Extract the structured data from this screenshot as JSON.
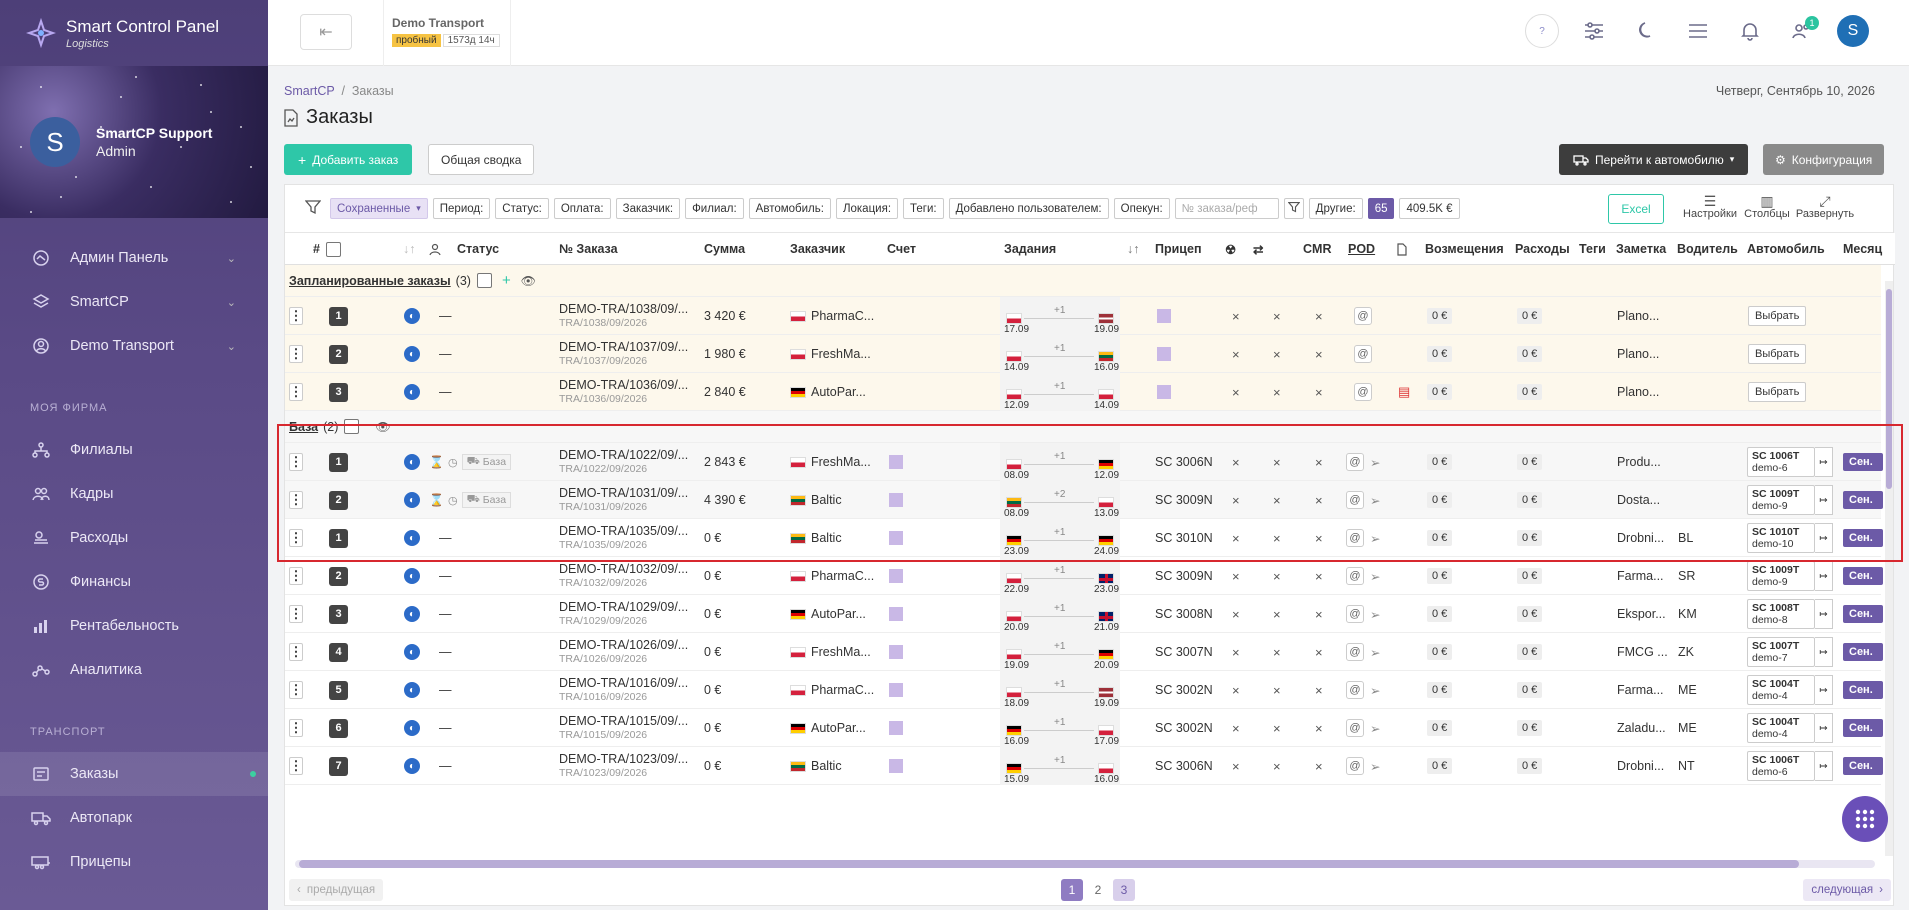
{
  "brand": {
    "title": "Smart Control Panel",
    "subtitle": "Logistics"
  },
  "user": {
    "initial": "S",
    "name": "SmartCP Support",
    "role": "Admin"
  },
  "nav": {
    "top": [
      {
        "label": "Админ Панель",
        "icon": "grid-icon"
      },
      {
        "label": "SmartCP",
        "icon": "layers-icon"
      },
      {
        "label": "Demo Transport",
        "icon": "user-circle-icon"
      }
    ],
    "section_company": "МОЯ ФИРМА",
    "company": [
      {
        "label": "Филиалы",
        "icon": "network-icon"
      },
      {
        "label": "Кадры",
        "icon": "people-icon"
      },
      {
        "label": "Расходы",
        "icon": "cash-icon"
      },
      {
        "label": "Финансы",
        "icon": "coin-icon"
      },
      {
        "label": "Рентабельность",
        "icon": "bar-chart-icon"
      },
      {
        "label": "Аналитика",
        "icon": "analytics-icon"
      }
    ],
    "section_transport": "ТРАНСПОРТ",
    "transport": [
      {
        "label": "Заказы",
        "icon": "orders-icon"
      },
      {
        "label": "Автопарк",
        "icon": "truck-icon"
      },
      {
        "label": "Прицепы",
        "icon": "trailer-icon"
      }
    ]
  },
  "topbar": {
    "company_name": "Demo Transport",
    "trial_badge": "пробный",
    "time_badge": "1573д 14ч",
    "help_label": "?",
    "notif_count": "1",
    "avatar_initial": "S"
  },
  "page": {
    "breadcrumb_root": "SmartCP",
    "breadcrumb_sep": "/",
    "breadcrumb_current": "Заказы",
    "date": "Четверг, Сентябрь 10, 2026",
    "title": "Заказы",
    "add_button": "Добавить заказ",
    "summary_button": "Общая сводка",
    "go_vehicle_button": "Перейти к автомобилю",
    "config_button": "Конфигурация"
  },
  "filters": {
    "saved": "Сохраненные",
    "chips": [
      "Период:",
      "Статус:",
      "Оплата:",
      "Заказчик:",
      "Филиал:",
      "Автомобиль:",
      "Локация:",
      "Теги:",
      "Добавлено пользователем:",
      "Опекун:"
    ],
    "search_placeholder": "№ заказа/реф",
    "other": "Другие:",
    "count": "65",
    "total": "409.5K €",
    "excel": "Excel",
    "settings": "Настройки",
    "columns": "Столбцы",
    "expand": "Развернуть"
  },
  "columns": {
    "hash": "#",
    "status": "Статус",
    "order_no": "№ Заказа",
    "sum": "Сумма",
    "customer": "Заказчик",
    "invoice": "Счет",
    "tasks": "Задания",
    "trailer": "Прицеп",
    "cmr": "CMR",
    "pod": "POD",
    "refunds": "Возмещения",
    "expenses": "Расходы",
    "tags": "Теги",
    "note": "Заметка",
    "driver": "Водитель",
    "vehicle": "Автомобиль",
    "month": "Месяц"
  },
  "groups": {
    "planned": {
      "title": "Запланированные заказы",
      "count": "(3)",
      "add": "+"
    },
    "base": {
      "title": "База",
      "count": "(2)"
    }
  },
  "planned_rows": [
    {
      "n": "1",
      "order": "DEMO-TRA/1038/09/...",
      "ref": "TRA/1038/09/2026",
      "sum": "3 420 €",
      "flag": "pl",
      "customer": "PharmaC...",
      "f1": "pl",
      "f2": "lv",
      "plus": "+1",
      "d1": "17.09",
      "d2": "19.09",
      "refund": "0 €",
      "expense": "0 €",
      "note": "Plano...",
      "choose": "Выбрать",
      "pdf": false
    },
    {
      "n": "2",
      "order": "DEMO-TRA/1037/09/...",
      "ref": "TRA/1037/09/2026",
      "sum": "1 980 €",
      "flag": "pl",
      "customer": "FreshMa...",
      "f1": "pl",
      "f2": "lt",
      "plus": "+1",
      "d1": "14.09",
      "d2": "16.09",
      "refund": "0 €",
      "expense": "0 €",
      "note": "Plano...",
      "choose": "Выбрать",
      "pdf": false
    },
    {
      "n": "3",
      "order": "DEMO-TRA/1036/09/...",
      "ref": "TRA/1036/09/2026",
      "sum": "2 840 €",
      "flag": "de",
      "customer": "AutoPar...",
      "f1": "pl",
      "f2": "pl",
      "plus": "+1",
      "d1": "12.09",
      "d2": "14.09",
      "refund": "0 €",
      "expense": "0 €",
      "note": "Plano...",
      "choose": "Выбрать",
      "pdf": true
    }
  ],
  "base_rows": [
    {
      "n": "1",
      "order": "DEMO-TRA/1022/09/...",
      "ref": "TRA/1022/09/2026",
      "sum": "2 843 €",
      "flag": "pl",
      "customer": "FreshMa...",
      "f1": "pl",
      "f2": "de",
      "plus": "+1",
      "d1": "08.09",
      "d2": "12.09",
      "trailer": "SC 3006N",
      "refund": "0 €",
      "expense": "0 €",
      "note": "Produ...",
      "car1": "SC 1006T",
      "car2": "demo-6",
      "status": "База",
      "sen": "Сен."
    },
    {
      "n": "2",
      "order": "DEMO-TRA/1031/09/...",
      "ref": "TRA/1031/09/2026",
      "sum": "4 390 €",
      "flag": "lt",
      "customer": "Baltic",
      "f1": "lt",
      "f2": "pl",
      "plus": "+2",
      "d1": "08.09",
      "d2": "13.09",
      "trailer": "SC 3009N",
      "refund": "0 €",
      "expense": "0 €",
      "note": "Dosta...",
      "car1": "SC 1009T",
      "car2": "demo-9",
      "status": "База",
      "sen": "Сен."
    }
  ],
  "rows": [
    {
      "n": "1",
      "order": "DEMO-TRA/1035/09/...",
      "ref": "TRA/1035/09/2026",
      "sum": "0 €",
      "flag": "lt",
      "customer": "Baltic",
      "f1": "de",
      "f2": "de",
      "plus": "+1",
      "d1": "23.09",
      "d2": "24.09",
      "trailer": "SC 3010N",
      "refund": "0 €",
      "expense": "0 €",
      "note": "Drobni...",
      "driver": "BL",
      "car1": "SC 1010T",
      "car2": "demo-10",
      "sen": "Сен."
    },
    {
      "n": "2",
      "order": "DEMO-TRA/1032/09/...",
      "ref": "TRA/1032/09/2026",
      "sum": "0 €",
      "flag": "pl",
      "customer": "PharmaC...",
      "f1": "pl",
      "f2": "gb",
      "plus": "+1",
      "d1": "22.09",
      "d2": "23.09",
      "trailer": "SC 3009N",
      "refund": "0 €",
      "expense": "0 €",
      "note": "Farma...",
      "driver": "SR",
      "car1": "SC 1009T",
      "car2": "demo-9",
      "sen": "Сен."
    },
    {
      "n": "3",
      "order": "DEMO-TRA/1029/09/...",
      "ref": "TRA/1029/09/2026",
      "sum": "0 €",
      "flag": "de",
      "customer": "AutoPar...",
      "f1": "pl",
      "f2": "gb",
      "plus": "+1",
      "d1": "20.09",
      "d2": "21.09",
      "trailer": "SC 3008N",
      "refund": "0 €",
      "expense": "0 €",
      "note": "Ekspor...",
      "driver": "KM",
      "car1": "SC 1008T",
      "car2": "demo-8",
      "sen": "Сен."
    },
    {
      "n": "4",
      "order": "DEMO-TRA/1026/09/...",
      "ref": "TRA/1026/09/2026",
      "sum": "0 €",
      "flag": "pl",
      "customer": "FreshMa...",
      "f1": "pl",
      "f2": "de",
      "plus": "+1",
      "d1": "19.09",
      "d2": "20.09",
      "trailer": "SC 3007N",
      "refund": "0 €",
      "expense": "0 €",
      "note": "FMCG ...",
      "driver": "ZK",
      "car1": "SC 1007T",
      "car2": "demo-7",
      "sen": "Сен."
    },
    {
      "n": "5",
      "order": "DEMO-TRA/1016/09/...",
      "ref": "TRA/1016/09/2026",
      "sum": "0 €",
      "flag": "pl",
      "customer": "PharmaC...",
      "f1": "pl",
      "f2": "lv",
      "plus": "+1",
      "d1": "18.09",
      "d2": "19.09",
      "trailer": "SC 3002N",
      "refund": "0 €",
      "expense": "0 €",
      "note": "Farma...",
      "driver": "ME",
      "car1": "SC 1004T",
      "car2": "demo-4",
      "sen": "Сен."
    },
    {
      "n": "6",
      "order": "DEMO-TRA/1015/09/...",
      "ref": "TRA/1015/09/2026",
      "sum": "0 €",
      "flag": "de",
      "customer": "AutoPar...",
      "f1": "de",
      "f2": "pl",
      "plus": "+1",
      "d1": "16.09",
      "d2": "17.09",
      "trailer": "SC 3002N",
      "refund": "0 €",
      "expense": "0 €",
      "note": "Zaladu...",
      "driver": "ME",
      "car1": "SC 1004T",
      "car2": "demo-4",
      "sen": "Сен."
    },
    {
      "n": "7",
      "order": "DEMO-TRA/1023/09/...",
      "ref": "TRA/1023/09/2026",
      "sum": "0 €",
      "flag": "lt",
      "customer": "Baltic",
      "f1": "de",
      "f2": "pl",
      "plus": "+1",
      "d1": "15.09",
      "d2": "16.09",
      "trailer": "SC 3006N",
      "refund": "0 €",
      "expense": "0 €",
      "note": "Drobni...",
      "driver": "NT",
      "car1": "SC 1006T",
      "car2": "demo-6",
      "sen": "Сен."
    }
  ],
  "row_marks": {
    "dash": "—",
    "x": "×",
    "at": "@"
  },
  "pagination": {
    "prev": "предыдущая",
    "next": "следующая",
    "pages": [
      "1",
      "2",
      "3"
    ]
  }
}
